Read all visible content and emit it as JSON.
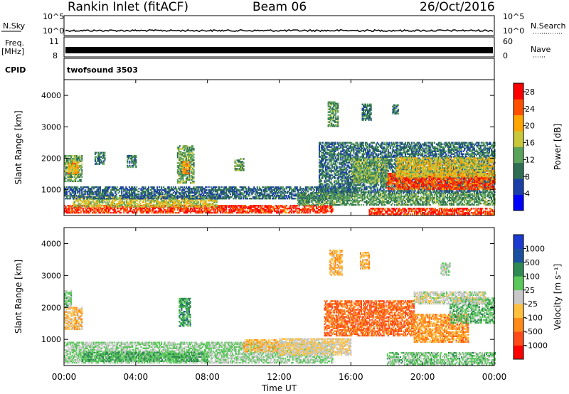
{
  "header": {
    "title": "Rankin Inlet (fitACF)",
    "beam": "Beam 06",
    "date": "26/Oct/2016"
  },
  "panels": {
    "nsky": {
      "left_label": "N.Sky",
      "right_label": "N.Search",
      "ticks_top": "10^5",
      "ticks_bottom": "10^0"
    },
    "freq": {
      "left_label_1": "Freq.",
      "left_label_2": "[MHz]",
      "right_label": "Nave",
      "left_ticks": [
        "11",
        "8"
      ],
      "right_ticks": [
        "60",
        "0"
      ]
    },
    "cpid": {
      "left_label": "CPID",
      "value": "twofsound 3503"
    }
  },
  "chart_data": [
    {
      "type": "heatmap",
      "title": "Power",
      "xlabel": "Time UT",
      "ylabel": "Slant Range [km]",
      "x_ticks": [
        "00:00",
        "04:00",
        "08:00",
        "12:00",
        "16:00",
        "20:00",
        "00:00"
      ],
      "xlim_hours": [
        0,
        24
      ],
      "y_ticks": [
        1000,
        2000,
        3000,
        4000
      ],
      "ylim": [
        180,
        4500
      ],
      "colorbar": {
        "label": "Power [dB]",
        "ticks": [
          "4",
          "8",
          "12",
          "16",
          "20",
          "24",
          "28"
        ],
        "range": [
          0,
          30
        ],
        "colors": [
          "#0000ff",
          "#1a3fa6",
          "#2e6e52",
          "#5aa35a",
          "#c8c83a",
          "#ffa500",
          "#ff5000",
          "#ff0000"
        ]
      },
      "regions": [
        {
          "t": [
            0.0,
            1.0
          ],
          "r": [
            1250,
            2100
          ],
          "v": 13
        },
        {
          "t": [
            0.2,
            0.8
          ],
          "r": [
            1500,
            1900
          ],
          "v": 20
        },
        {
          "t": [
            0.0,
            15.0
          ],
          "r": [
            250,
            500
          ],
          "v": 26
        },
        {
          "t": [
            0.5,
            8.5
          ],
          "r": [
            450,
            800
          ],
          "v": 17
        },
        {
          "t": [
            0.0,
            16.0
          ],
          "r": [
            700,
            1100
          ],
          "v": 8
        },
        {
          "t": [
            6.3,
            7.2
          ],
          "r": [
            1200,
            2400
          ],
          "v": 13
        },
        {
          "t": [
            6.6,
            7.0
          ],
          "r": [
            1500,
            1900
          ],
          "v": 22
        },
        {
          "t": [
            1.7,
            2.3
          ],
          "r": [
            1800,
            2200
          ],
          "v": 10
        },
        {
          "t": [
            3.5,
            4.0
          ],
          "r": [
            1700,
            2100
          ],
          "v": 10
        },
        {
          "t": [
            9.5,
            10.0
          ],
          "r": [
            1600,
            2000
          ],
          "v": 12
        },
        {
          "t": [
            13.0,
            24.0
          ],
          "r": [
            500,
            900
          ],
          "v": 12
        },
        {
          "t": [
            14.2,
            24.0
          ],
          "r": [
            900,
            2500
          ],
          "v": 9
        },
        {
          "t": [
            18.0,
            24.0
          ],
          "r": [
            1000,
            1500
          ],
          "v": 25
        },
        {
          "t": [
            18.5,
            24.0
          ],
          "r": [
            1400,
            2000
          ],
          "v": 18
        },
        {
          "t": [
            16.0,
            18.0
          ],
          "r": [
            1200,
            2000
          ],
          "v": 14
        },
        {
          "t": [
            14.7,
            15.3
          ],
          "r": [
            3000,
            3800
          ],
          "v": 12
        },
        {
          "t": [
            16.6,
            17.1
          ],
          "r": [
            3200,
            3700
          ],
          "v": 9
        },
        {
          "t": [
            18.3,
            18.6
          ],
          "r": [
            3400,
            3700
          ],
          "v": 9
        },
        {
          "t": [
            17.0,
            24.0
          ],
          "r": [
            200,
            400
          ],
          "v": 26
        }
      ]
    },
    {
      "type": "heatmap",
      "title": "Velocity",
      "xlabel": "Time UT",
      "ylabel": "Slant Range [km]",
      "x_ticks": [
        "00:00",
        "04:00",
        "08:00",
        "12:00",
        "16:00",
        "20:00",
        "00:00"
      ],
      "xlim_hours": [
        0,
        24
      ],
      "y_ticks": [
        1000,
        2000,
        3000,
        4000
      ],
      "ylim": [
        180,
        4500
      ],
      "colorbar": {
        "label": "Velocity [m s⁻¹]",
        "ticks": [
          "1000",
          "500",
          "100",
          "25",
          "-25",
          "-100",
          "-500",
          "-1000"
        ],
        "range": [
          -1250,
          1250
        ],
        "colors": [
          "#ff0000",
          "#ff4a1a",
          "#ff8a1a",
          "#ffc040",
          "#c8c8c8",
          "#5ac85a",
          "#2e8a52",
          "#1a50a0",
          "#1a3ad0"
        ]
      },
      "regions": [
        {
          "t": [
            0.0,
            1.0
          ],
          "r": [
            1300,
            2000
          ],
          "v": -300
        },
        {
          "t": [
            0.0,
            0.4
          ],
          "r": [
            2000,
            2500
          ],
          "v": 200
        },
        {
          "t": [
            0.0,
            15.0
          ],
          "r": [
            250,
            900
          ],
          "v": 150
        },
        {
          "t": [
            1.0,
            8.0
          ],
          "r": [
            300,
            600
          ],
          "v": 400
        },
        {
          "t": [
            6.4,
            7.0
          ],
          "r": [
            1400,
            2300
          ],
          "v": 500
        },
        {
          "t": [
            10.0,
            12.0
          ],
          "r": [
            600,
            1000
          ],
          "v": -300
        },
        {
          "t": [
            12.0,
            16.0
          ],
          "r": [
            500,
            1000
          ],
          "v": -150
        },
        {
          "t": [
            14.5,
            19.5
          ],
          "r": [
            1100,
            2200
          ],
          "v": -700
        },
        {
          "t": [
            19.5,
            22.5
          ],
          "r": [
            900,
            1800
          ],
          "v": -500
        },
        {
          "t": [
            21.5,
            24.0
          ],
          "r": [
            1500,
            2300
          ],
          "v": 300
        },
        {
          "t": [
            19.5,
            23.5
          ],
          "r": [
            2100,
            2500
          ],
          "v": 0
        },
        {
          "t": [
            14.8,
            15.5
          ],
          "r": [
            3000,
            3800
          ],
          "v": -350
        },
        {
          "t": [
            16.5,
            17.0
          ],
          "r": [
            3200,
            3700
          ],
          "v": -350
        },
        {
          "t": [
            21.0,
            21.5
          ],
          "r": [
            3000,
            3400
          ],
          "v": 100
        },
        {
          "t": [
            18.0,
            24.0
          ],
          "r": [
            200,
            600
          ],
          "v": 250
        }
      ]
    }
  ]
}
